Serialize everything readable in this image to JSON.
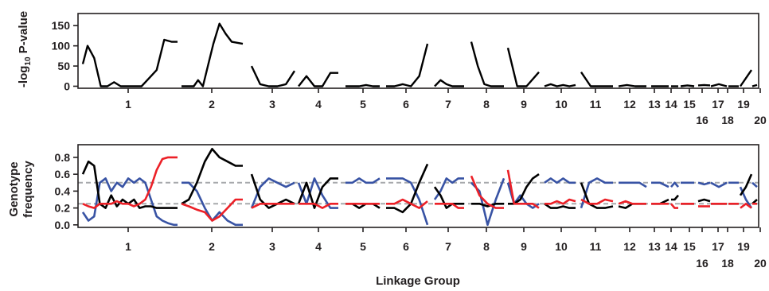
{
  "chart_data": [
    {
      "type": "line",
      "ylabel_main": "-log",
      "ylabel_sub": "10",
      "ylabel_tail": " P-value",
      "yticks": [
        0,
        50,
        100,
        150
      ],
      "ylim": [
        -5,
        180
      ],
      "line_color": "#000000",
      "segments": [
        {
          "lg": "1",
          "x": [
            0.0,
            0.05,
            0.12,
            0.19,
            0.26,
            0.33,
            0.4,
            0.46,
            0.54,
            0.62,
            0.7,
            0.78,
            0.86,
            0.94,
            1.0
          ],
          "y": [
            55,
            100,
            70,
            0,
            0,
            10,
            0,
            0,
            0,
            0,
            20,
            40,
            115,
            110,
            110
          ]
        },
        {
          "lg": "2",
          "x": [
            0.0,
            0.1,
            0.2,
            0.27,
            0.35,
            0.43,
            0.52,
            0.62,
            0.72,
            0.82,
            1.0
          ],
          "y": [
            0,
            0,
            0,
            15,
            0,
            50,
            105,
            155,
            130,
            110,
            105
          ]
        },
        {
          "lg": "3",
          "x": [
            0.0,
            0.2,
            0.4,
            0.6,
            0.8,
            1.0
          ],
          "y": [
            50,
            5,
            0,
            0,
            5,
            38
          ]
        },
        {
          "lg": "4",
          "x": [
            0.0,
            0.2,
            0.4,
            0.6,
            0.8,
            1.0
          ],
          "y": [
            0,
            25,
            0,
            0,
            33,
            33
          ]
        },
        {
          "lg": "5",
          "x": [
            0.0,
            0.2,
            0.4,
            0.6,
            0.8,
            1.0
          ],
          "y": [
            0,
            0,
            0,
            3,
            0,
            0
          ]
        },
        {
          "lg": "6",
          "x": [
            0.0,
            0.2,
            0.4,
            0.6,
            0.8,
            1.0
          ],
          "y": [
            0,
            0,
            5,
            0,
            25,
            105
          ]
        },
        {
          "lg": "7",
          "x": [
            0.0,
            0.2,
            0.4,
            0.6,
            0.8,
            1.0
          ],
          "y": [
            0,
            15,
            5,
            0,
            0,
            0
          ]
        },
        {
          "lg": "8",
          "x": [
            0.0,
            0.2,
            0.4,
            0.6,
            0.8,
            1.0
          ],
          "y": [
            110,
            50,
            5,
            0,
            0,
            0
          ]
        },
        {
          "lg": "9",
          "x": [
            0.0,
            0.3,
            0.6,
            1.0
          ],
          "y": [
            95,
            0,
            0,
            35
          ]
        },
        {
          "lg": "10",
          "x": [
            0.0,
            0.2,
            0.4,
            0.6,
            0.8,
            1.0
          ],
          "y": [
            0,
            5,
            0,
            3,
            0,
            3
          ]
        },
        {
          "lg": "11",
          "x": [
            0.0,
            0.3,
            0.6,
            1.0
          ],
          "y": [
            35,
            0,
            0,
            0
          ]
        },
        {
          "lg": "12",
          "x": [
            0.0,
            0.3,
            0.6,
            1.0
          ],
          "y": [
            0,
            3,
            0,
            0
          ]
        },
        {
          "lg": "13",
          "x": [
            0.0,
            0.5,
            1.0
          ],
          "y": [
            0,
            0,
            0
          ]
        },
        {
          "lg": "14",
          "x": [
            0.0,
            0.5,
            1.0
          ],
          "y": [
            0,
            0,
            0
          ]
        },
        {
          "lg": "15",
          "x": [
            0.0,
            0.5,
            1.0
          ],
          "y": [
            0,
            2,
            0
          ]
        },
        {
          "lg": "16",
          "x": [
            0.0,
            0.5,
            1.0
          ],
          "y": [
            2,
            3,
            2
          ]
        },
        {
          "lg": "17",
          "x": [
            0.0,
            0.5,
            1.0
          ],
          "y": [
            0,
            5,
            0
          ]
        },
        {
          "lg": "18",
          "x": [
            0.0,
            0.5,
            1.0
          ],
          "y": [
            0,
            0,
            0
          ]
        },
        {
          "lg": "19",
          "x": [
            0.0,
            0.5,
            1.0
          ],
          "y": [
            0,
            20,
            40
          ]
        },
        {
          "lg": "20",
          "x": [
            0.0,
            1.0
          ],
          "y": [
            0,
            3
          ]
        }
      ]
    },
    {
      "type": "line",
      "ylabel_line1": "Genotype",
      "ylabel_line2": "frequency",
      "xlabel": "Linkage Group",
      "yticks": [
        "0.0",
        "0.2",
        "0.4",
        "0.6",
        "0.8"
      ],
      "ylim": [
        -0.03,
        0.95
      ],
      "reference_lines": [
        0.5,
        0.25
      ],
      "reference_color": "#a7a9ac",
      "series_colors": [
        "#000000",
        "#3853a4",
        "#ec2027"
      ],
      "segments": [
        {
          "lg": "1",
          "x": [
            0.0,
            0.06,
            0.12,
            0.18,
            0.24,
            0.3,
            0.36,
            0.42,
            0.48,
            0.54,
            0.6,
            0.66,
            0.72,
            0.78,
            0.84,
            0.9,
            0.96,
            1.0
          ],
          "black": [
            0.6,
            0.75,
            0.7,
            0.25,
            0.2,
            0.35,
            0.22,
            0.3,
            0.25,
            0.3,
            0.2,
            0.22,
            0.22,
            0.2,
            0.2,
            0.2,
            0.2,
            0.2
          ],
          "blue": [
            0.15,
            0.05,
            0.1,
            0.5,
            0.55,
            0.4,
            0.5,
            0.45,
            0.55,
            0.5,
            0.55,
            0.5,
            0.3,
            0.1,
            0.05,
            0.02,
            0.0,
            0.0
          ],
          "red": [
            0.25,
            0.22,
            0.2,
            0.25,
            0.25,
            0.25,
            0.28,
            0.25,
            0.25,
            0.22,
            0.25,
            0.3,
            0.45,
            0.65,
            0.78,
            0.8,
            0.8,
            0.8
          ]
        },
        {
          "lg": "2",
          "x": [
            0.0,
            0.12,
            0.25,
            0.38,
            0.5,
            0.62,
            0.75,
            0.88,
            1.0
          ],
          "black": [
            0.25,
            0.3,
            0.5,
            0.75,
            0.9,
            0.8,
            0.75,
            0.7,
            0.7
          ],
          "blue": [
            0.5,
            0.5,
            0.4,
            0.2,
            0.05,
            0.15,
            0.05,
            0.0,
            0.0
          ],
          "red": [
            0.25,
            0.22,
            0.18,
            0.15,
            0.05,
            0.1,
            0.2,
            0.3,
            0.3
          ]
        },
        {
          "lg": "3",
          "x": [
            0.0,
            0.2,
            0.4,
            0.6,
            0.8,
            1.0
          ],
          "black": [
            0.6,
            0.3,
            0.2,
            0.25,
            0.3,
            0.25
          ],
          "blue": [
            0.2,
            0.45,
            0.55,
            0.5,
            0.45,
            0.5
          ],
          "red": [
            0.2,
            0.25,
            0.25,
            0.25,
            0.25,
            0.25
          ]
        },
        {
          "lg": "4",
          "x": [
            0.0,
            0.2,
            0.4,
            0.6,
            0.8,
            1.0
          ],
          "black": [
            0.25,
            0.5,
            0.2,
            0.45,
            0.55,
            0.55
          ],
          "blue": [
            0.5,
            0.25,
            0.55,
            0.35,
            0.2,
            0.2
          ],
          "red": [
            0.25,
            0.25,
            0.25,
            0.2,
            0.25,
            0.25
          ]
        },
        {
          "lg": "5",
          "x": [
            0.0,
            0.2,
            0.4,
            0.6,
            0.8,
            1.0
          ],
          "black": [
            0.25,
            0.25,
            0.2,
            0.25,
            0.25,
            0.2
          ],
          "blue": [
            0.5,
            0.5,
            0.55,
            0.5,
            0.5,
            0.55
          ],
          "red": [
            0.25,
            0.25,
            0.25,
            0.25,
            0.25,
            0.25
          ]
        },
        {
          "lg": "6",
          "x": [
            0.0,
            0.2,
            0.4,
            0.6,
            0.8,
            1.0
          ],
          "black": [
            0.2,
            0.2,
            0.15,
            0.25,
            0.5,
            0.72
          ],
          "blue": [
            0.55,
            0.55,
            0.55,
            0.5,
            0.3,
            0.0
          ],
          "red": [
            0.25,
            0.25,
            0.3,
            0.25,
            0.2,
            0.28
          ]
        },
        {
          "lg": "7",
          "x": [
            0.0,
            0.2,
            0.4,
            0.6,
            0.8,
            1.0
          ],
          "black": [
            0.45,
            0.35,
            0.2,
            0.25,
            0.25,
            0.25
          ],
          "blue": [
            0.3,
            0.4,
            0.55,
            0.5,
            0.55,
            0.55
          ],
          "red": [
            0.25,
            0.25,
            0.25,
            0.25,
            0.2,
            0.2
          ]
        },
        {
          "lg": "8",
          "x": [
            0.0,
            0.25,
            0.5,
            0.75,
            1.0
          ],
          "black": [
            0.25,
            0.25,
            0.22,
            0.25,
            0.25
          ],
          "blue": [
            0.5,
            0.4,
            0.0,
            0.3,
            0.55
          ],
          "red": [
            0.58,
            0.35,
            0.25,
            0.2,
            0.2
          ]
        },
        {
          "lg": "9",
          "x": [
            0.0,
            0.2,
            0.4,
            0.6,
            0.8,
            1.0
          ],
          "black": [
            0.25,
            0.25,
            0.3,
            0.45,
            0.55,
            0.6
          ],
          "blue": [
            0.5,
            0.25,
            0.35,
            0.25,
            0.2,
            0.25
          ],
          "red": [
            0.65,
            0.25,
            0.25,
            0.25,
            0.25,
            0.2
          ]
        },
        {
          "lg": "10",
          "x": [
            0.0,
            0.2,
            0.4,
            0.6,
            0.8,
            1.0
          ],
          "black": [
            0.25,
            0.2,
            0.2,
            0.22,
            0.2,
            0.2
          ],
          "blue": [
            0.5,
            0.55,
            0.5,
            0.55,
            0.5,
            0.5
          ],
          "red": [
            0.25,
            0.25,
            0.28,
            0.25,
            0.3,
            0.28
          ]
        },
        {
          "lg": "11",
          "x": [
            0.0,
            0.25,
            0.5,
            0.75,
            1.0
          ],
          "black": [
            0.5,
            0.25,
            0.2,
            0.2,
            0.22
          ],
          "blue": [
            0.2,
            0.5,
            0.55,
            0.5,
            0.5
          ],
          "red": [
            0.3,
            0.25,
            0.25,
            0.3,
            0.28
          ]
        },
        {
          "lg": "12",
          "x": [
            0.0,
            0.25,
            0.5,
            0.75,
            1.0
          ],
          "black": [
            0.22,
            0.2,
            0.25,
            0.25,
            0.25
          ],
          "blue": [
            0.5,
            0.5,
            0.5,
            0.5,
            0.45
          ],
          "red": [
            0.25,
            0.28,
            0.25,
            0.25,
            0.25
          ]
        },
        {
          "lg": "13",
          "x": [
            0.0,
            0.5,
            1.0
          ],
          "black": [
            0.25,
            0.25,
            0.3
          ],
          "blue": [
            0.5,
            0.5,
            0.45
          ],
          "red": [
            0.25,
            0.25,
            0.25
          ]
        },
        {
          "lg": "14",
          "x": [
            0.0,
            0.5,
            1.0
          ],
          "black": [
            0.3,
            0.3,
            0.35
          ],
          "blue": [
            0.45,
            0.5,
            0.45
          ],
          "red": [
            0.25,
            0.2,
            0.2
          ]
        },
        {
          "lg": "15",
          "x": [
            0.0,
            0.5,
            1.0
          ],
          "black": [
            0.25,
            0.25,
            0.25
          ],
          "blue": [
            0.5,
            0.5,
            0.5
          ],
          "red": [
            0.25,
            0.25,
            0.25
          ]
        },
        {
          "lg": "16",
          "x": [
            0.0,
            0.5,
            1.0
          ],
          "black": [
            0.28,
            0.3,
            0.28
          ],
          "blue": [
            0.5,
            0.48,
            0.5
          ],
          "red": [
            0.22,
            0.22,
            0.22
          ]
        },
        {
          "lg": "17",
          "x": [
            0.0,
            0.5,
            1.0
          ],
          "black": [
            0.25,
            0.25,
            0.25
          ],
          "blue": [
            0.5,
            0.45,
            0.5
          ],
          "red": [
            0.25,
            0.25,
            0.25
          ]
        },
        {
          "lg": "18",
          "x": [
            0.0,
            0.5,
            1.0
          ],
          "black": [
            0.25,
            0.25,
            0.25
          ],
          "blue": [
            0.5,
            0.5,
            0.5
          ],
          "red": [
            0.25,
            0.25,
            0.25
          ]
        },
        {
          "lg": "19",
          "x": [
            0.0,
            0.5,
            1.0
          ],
          "black": [
            0.35,
            0.45,
            0.6
          ],
          "blue": [
            0.45,
            0.3,
            0.2
          ],
          "red": [
            0.2,
            0.25,
            0.2
          ]
        },
        {
          "lg": "20",
          "x": [
            0.0,
            1.0
          ],
          "black": [
            0.25,
            0.3
          ],
          "blue": [
            0.5,
            0.45
          ],
          "red": [
            0.25,
            0.25
          ]
        }
      ]
    }
  ],
  "linkage_groups": [
    "1",
    "2",
    "3",
    "4",
    "5",
    "6",
    "7",
    "8",
    "9",
    "10",
    "11",
    "12",
    "13",
    "14",
    "15",
    "16",
    "17",
    "18",
    "19",
    "20"
  ]
}
